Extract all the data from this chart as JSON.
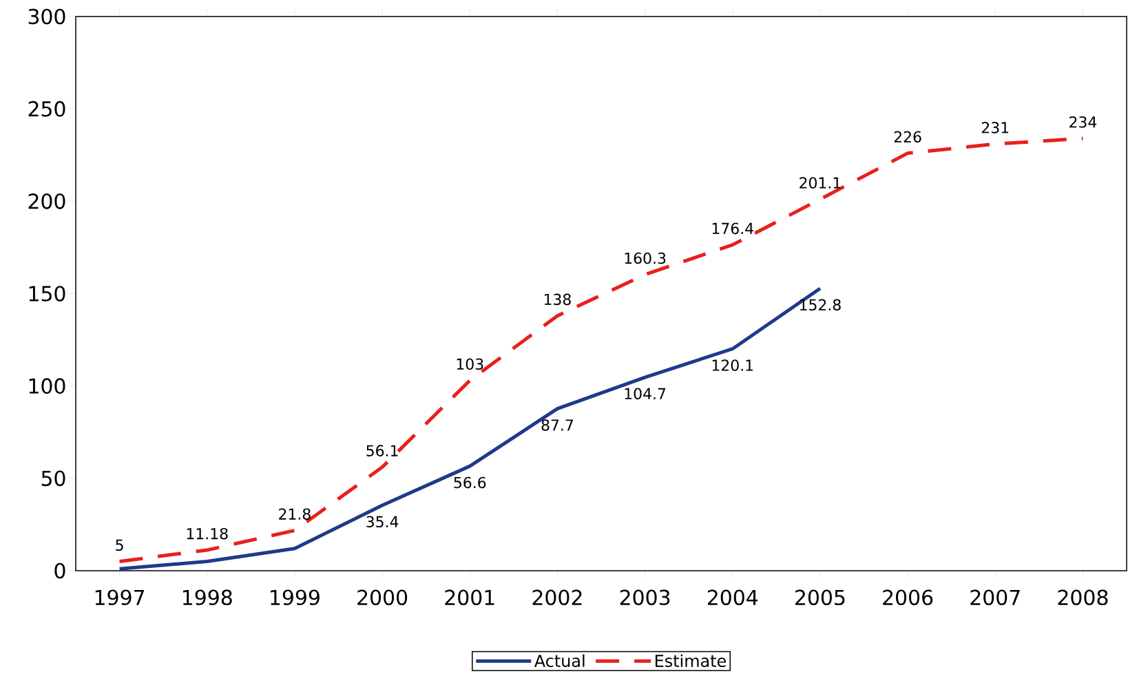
{
  "chart_data": {
    "type": "line",
    "categories": [
      "1997",
      "1998",
      "1999",
      "2000",
      "2001",
      "2002",
      "2003",
      "2004",
      "2005",
      "2006",
      "2007",
      "2008"
    ],
    "series": [
      {
        "name": "Actual",
        "color": "#1f3a8a",
        "line_style": "solid",
        "values": [
          1,
          5,
          12,
          35.4,
          56.6,
          87.7,
          104.7,
          120.1,
          152.8,
          null,
          null,
          null
        ],
        "value_labels": [
          null,
          null,
          null,
          "35.4",
          "56.6",
          "87.7",
          "104.7",
          "120.1",
          "152.8",
          null,
          null,
          null
        ]
      },
      {
        "name": "Estimate",
        "color": "#e8201c",
        "line_style": "dashed",
        "values": [
          5,
          11.18,
          21.8,
          56.1,
          103,
          138,
          160.3,
          176.4,
          201.1,
          226,
          231,
          234
        ],
        "value_labels": [
          "5",
          "11.18",
          "21.8",
          "56.1",
          "103",
          "138",
          "160.3",
          "176.4",
          "201.1",
          "226",
          "231",
          "234"
        ]
      }
    ],
    "ylim": [
      0,
      300
    ],
    "yticks": [
      0,
      50,
      100,
      150,
      200,
      250,
      300
    ],
    "legend": "bottom",
    "marker": "none",
    "grid": false
  }
}
